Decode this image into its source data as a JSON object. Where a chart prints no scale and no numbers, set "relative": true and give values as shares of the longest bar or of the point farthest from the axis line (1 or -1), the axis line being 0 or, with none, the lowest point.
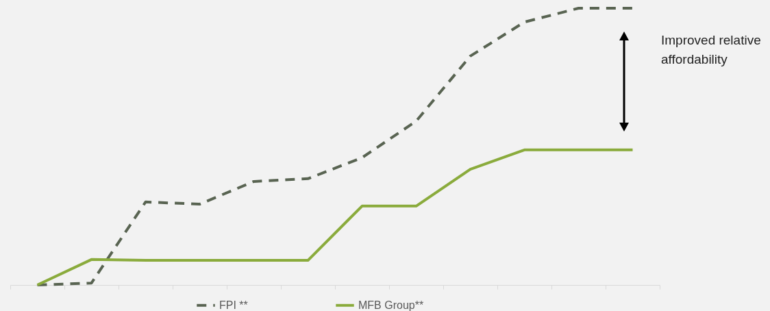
{
  "chart_data": {
    "type": "line",
    "relative": true,
    "categories": [
      null,
      null,
      null,
      null,
      null,
      null,
      null,
      null,
      null,
      null,
      null,
      null
    ],
    "series": [
      {
        "name": "FPI **",
        "color": "#596452",
        "line_style": "dashed",
        "values": [
          0,
          0.007,
          0.3,
          0.292,
          0.374,
          0.384,
          0.46,
          0.592,
          0.827,
          0.95,
          1,
          1
        ]
      },
      {
        "name": "MFB Group**",
        "color": "#8aab3c",
        "line_style": "solid",
        "values": [
          0,
          0.092,
          0.089,
          0.089,
          0.089,
          0.089,
          0.285,
          0.285,
          0.418,
          0.488,
          0.488,
          0.488
        ]
      }
    ],
    "annotations": [
      "Improved relative affordability"
    ],
    "grid": false,
    "legend": "bottom",
    "marker": "none"
  }
}
